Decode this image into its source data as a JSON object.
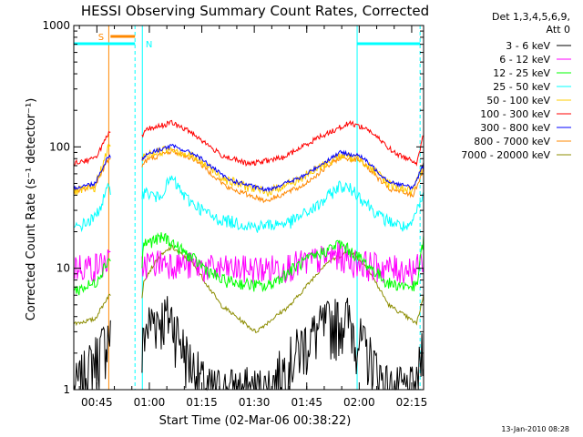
{
  "chart_data": {
    "type": "line",
    "title": "HESSI Observing Summary Count Rates, Corrected",
    "xlabel": "Start Time (02-Mar-06 00:38:22)",
    "ylabel": "Corrected Count Rate (s⁻¹ detector⁻¹)",
    "y_scale": "log",
    "ylim": [
      1,
      1000
    ],
    "xlim_minutes_after_start": [
      0,
      100
    ],
    "x_ticks": [
      {
        "label": "00:45",
        "minute": 6.6
      },
      {
        "label": "01:00",
        "minute": 21.6
      },
      {
        "label": "01:15",
        "minute": 36.6
      },
      {
        "label": "01:30",
        "minute": 51.6
      },
      {
        "label": "01:45",
        "minute": 66.6
      },
      {
        "label": "02:00",
        "minute": 81.6
      },
      {
        "label": "02:15",
        "minute": 96.6
      }
    ],
    "y_ticks": [
      {
        "label": "1",
        "value": 1
      },
      {
        "label": "10",
        "value": 10
      },
      {
        "label": "100",
        "value": 100
      },
      {
        "label": "1000",
        "value": 1000
      }
    ],
    "legend_header": [
      "Det 1,3,4,5,6,9,",
      "Att 0"
    ],
    "legend_position": "right",
    "series": [
      {
        "name": "3 - 6 keV",
        "color": "#000000",
        "values": [
          [
            0,
            1.0
          ],
          [
            9,
            2.5
          ],
          [
            10,
            3.0
          ],
          [
            19,
            1.0
          ],
          [
            20,
            3.0
          ],
          [
            23,
            4.0
          ],
          [
            28,
            4.0
          ],
          [
            32,
            2.0
          ],
          [
            38,
            1.0
          ],
          [
            55,
            1.0
          ],
          [
            60,
            1.5
          ],
          [
            66,
            2.5
          ],
          [
            72,
            3.5
          ],
          [
            78,
            4.0
          ],
          [
            84,
            2.0
          ],
          [
            90,
            1.0
          ],
          [
            98,
            1.0
          ],
          [
            100,
            3.0
          ]
        ]
      },
      {
        "name": "6 - 12 keV",
        "color": "#ff00ff",
        "values": [
          [
            0,
            10.5
          ],
          [
            6,
            10.5
          ],
          [
            10,
            11.5
          ],
          [
            19,
            9.5
          ],
          [
            20,
            11.0
          ],
          [
            26,
            11.5
          ],
          [
            40,
            10.0
          ],
          [
            55,
            10.0
          ],
          [
            65,
            11.0
          ],
          [
            75,
            13.0
          ],
          [
            80,
            11.5
          ],
          [
            90,
            10.0
          ],
          [
            98,
            10.0
          ],
          [
            100,
            12.0
          ]
        ]
      },
      {
        "name": "12 - 25 keV",
        "color": "#00ff00",
        "values": [
          [
            0,
            6.5
          ],
          [
            6,
            7.5
          ],
          [
            10,
            12.0
          ],
          [
            19,
            7.0
          ],
          [
            20,
            16.0
          ],
          [
            26,
            18.0
          ],
          [
            34,
            12.0
          ],
          [
            42,
            8.0
          ],
          [
            55,
            7.0
          ],
          [
            65,
            11.0
          ],
          [
            76,
            16.0
          ],
          [
            82,
            12.0
          ],
          [
            90,
            7.5
          ],
          [
            98,
            7.0
          ],
          [
            100,
            18.0
          ]
        ]
      },
      {
        "name": "25 - 50 keV",
        "color": "#00ffff",
        "values": [
          [
            0,
            21.0
          ],
          [
            6,
            26.0
          ],
          [
            10,
            46.0
          ],
          [
            19,
            42.0
          ],
          [
            21,
            42.0
          ],
          [
            24,
            38.0
          ],
          [
            28,
            55.0
          ],
          [
            32,
            38.0
          ],
          [
            40,
            26.0
          ],
          [
            52,
            22.0
          ],
          [
            62,
            24.0
          ],
          [
            70,
            33.0
          ],
          [
            76,
            48.0
          ],
          [
            80,
            44.0
          ],
          [
            88,
            26.0
          ],
          [
            96,
            21.0
          ],
          [
            100,
            40.0
          ]
        ]
      },
      {
        "name": "50 - 100 keV",
        "color": "#ffcc00",
        "values": [
          [
            0,
            43.0
          ],
          [
            6,
            46.0
          ],
          [
            10,
            100.0
          ],
          [
            19,
            80.0
          ],
          [
            22,
            88.0
          ],
          [
            28,
            98.0
          ],
          [
            35,
            80.0
          ],
          [
            44,
            53.0
          ],
          [
            55,
            42.0
          ],
          [
            65,
            55.0
          ],
          [
            76,
            85.0
          ],
          [
            82,
            80.0
          ],
          [
            90,
            50.0
          ],
          [
            97,
            43.0
          ],
          [
            100,
            70.0
          ]
        ]
      },
      {
        "name": "100 - 300 keV",
        "color": "#ff0000",
        "values": [
          [
            0,
            74.0
          ],
          [
            6,
            80.0
          ],
          [
            10,
            128.0
          ],
          [
            19,
            115.0
          ],
          [
            21,
            140.0
          ],
          [
            28,
            158.0
          ],
          [
            34,
            130.0
          ],
          [
            42,
            86.0
          ],
          [
            50,
            72.0
          ],
          [
            60,
            82.0
          ],
          [
            70,
            120.0
          ],
          [
            79,
            158.0
          ],
          [
            84,
            140.0
          ],
          [
            92,
            88.0
          ],
          [
            98,
            75.0
          ],
          [
            100,
            125.0
          ]
        ]
      },
      {
        "name": "300 - 800 keV",
        "color": "#0000ff",
        "values": [
          [
            0,
            46.0
          ],
          [
            6,
            50.0
          ],
          [
            10,
            85.0
          ],
          [
            19,
            75.0
          ],
          [
            21,
            88.0
          ],
          [
            28,
            102.0
          ],
          [
            35,
            86.0
          ],
          [
            44,
            54.0
          ],
          [
            55,
            44.0
          ],
          [
            65,
            56.0
          ],
          [
            76,
            90.0
          ],
          [
            82,
            84.0
          ],
          [
            90,
            52.0
          ],
          [
            97,
            46.0
          ],
          [
            100,
            72.0
          ]
        ]
      },
      {
        "name": "800 - 7000 keV",
        "color": "#ff8800",
        "values": [
          [
            0,
            43.0
          ],
          [
            6,
            48.0
          ],
          [
            10,
            80.0
          ],
          [
            19,
            68.0
          ],
          [
            21,
            78.0
          ],
          [
            28,
            93.0
          ],
          [
            35,
            78.0
          ],
          [
            44,
            46.0
          ],
          [
            55,
            36.0
          ],
          [
            65,
            47.0
          ],
          [
            76,
            82.0
          ],
          [
            82,
            78.0
          ],
          [
            90,
            45.0
          ],
          [
            97,
            40.0
          ],
          [
            100,
            66.0
          ]
        ]
      },
      {
        "name": "7000 - 20000 keV",
        "color": "#8c8c00",
        "values": [
          [
            0,
            3.5
          ],
          [
            6,
            3.8
          ],
          [
            10,
            6.0
          ],
          [
            19,
            4.0
          ],
          [
            20,
            8.0
          ],
          [
            24,
            12.0
          ],
          [
            28,
            15.0
          ],
          [
            34,
            11.0
          ],
          [
            42,
            5.0
          ],
          [
            52,
            3.0
          ],
          [
            62,
            5.0
          ],
          [
            72,
            11.0
          ],
          [
            79,
            14.0
          ],
          [
            84,
            10.0
          ],
          [
            90,
            5.0
          ],
          [
            98,
            3.5
          ],
          [
            100,
            6.0
          ]
        ]
      }
    ],
    "annotations": [
      {
        "text": "S",
        "color": "#ff8800"
      },
      {
        "text": "N",
        "color": "#00ffff"
      }
    ],
    "footer_date": "13-Jan-2010 08:28"
  }
}
